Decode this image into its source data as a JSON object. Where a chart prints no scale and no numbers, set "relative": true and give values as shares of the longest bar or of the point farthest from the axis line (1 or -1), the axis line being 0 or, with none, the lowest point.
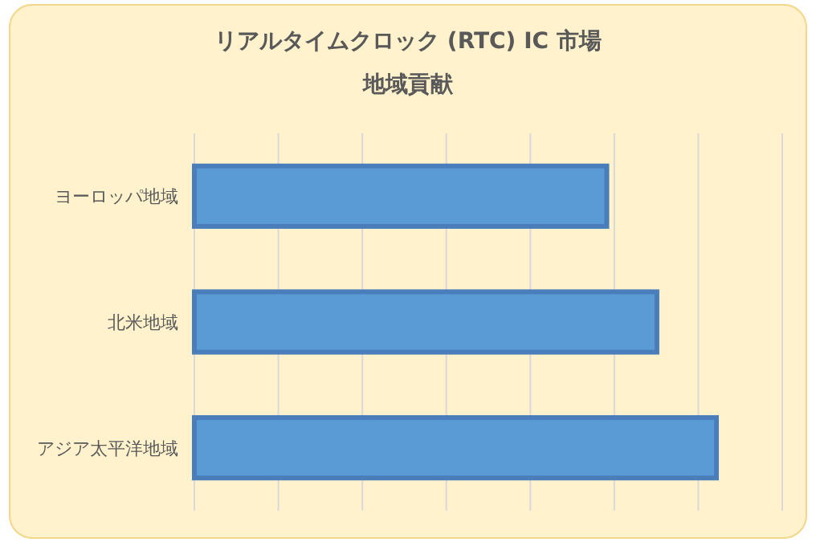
{
  "chart_data": {
    "type": "bar",
    "orientation": "horizontal",
    "relative": true,
    "title": "リアルタイムクロック (RTC) IC 市場",
    "subtitle": "地域貢献",
    "categories": [
      "ヨーロッパ地域",
      "北米地域",
      "アジア太平洋地域"
    ],
    "values": [
      0.79,
      0.886,
      1
    ],
    "color": "#5b9bd5",
    "grid": "x"
  }
}
